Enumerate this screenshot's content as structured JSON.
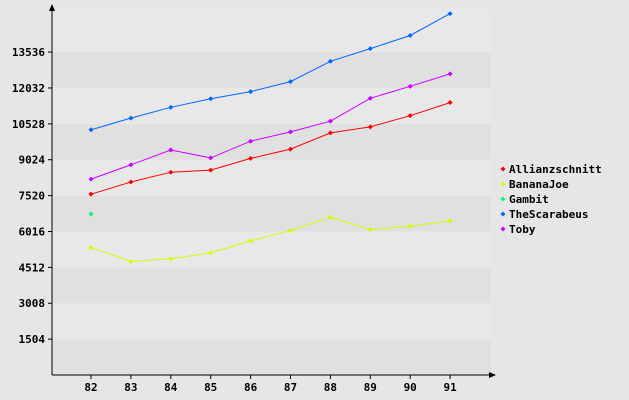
{
  "chart_data": {
    "type": "line",
    "title": "",
    "xlabel": "",
    "ylabel": "",
    "categories": [
      "82",
      "83",
      "84",
      "85",
      "86",
      "87",
      "88",
      "89",
      "90",
      "91"
    ],
    "y_ticks": [
      1504,
      3008,
      4512,
      6016,
      7520,
      9024,
      10528,
      12032,
      13536
    ],
    "ylim": [
      0,
      15300
    ],
    "grid": "horizontal bands",
    "legend_position": "right",
    "series": [
      {
        "name": "Allianzschnitt",
        "color": "#ff0000",
        "values": [
          7580,
          8090,
          8500,
          8590,
          9080,
          9470,
          10150,
          10400,
          10870,
          11420
        ]
      },
      {
        "name": "BananaJoe",
        "color": "#ccff00",
        "values": [
          5340,
          4760,
          4870,
          5120,
          5620,
          6050,
          6610,
          6100,
          6230,
          6460
        ]
      },
      {
        "name": "Gambit",
        "color": "#00ff66",
        "values": [
          6750,
          null,
          null,
          null,
          null,
          null,
          null,
          null,
          null,
          null
        ]
      },
      {
        "name": "TheScarabeus",
        "color": "#0066ff",
        "values": [
          10280,
          10770,
          11220,
          11580,
          11880,
          12300,
          13150,
          13680,
          14230,
          15150
        ]
      },
      {
        "name": "Toby",
        "color": "#cc00ff",
        "values": [
          8210,
          8810,
          9430,
          9100,
          9800,
          10190,
          10640,
          11600,
          12100,
          12620
        ]
      }
    ]
  }
}
